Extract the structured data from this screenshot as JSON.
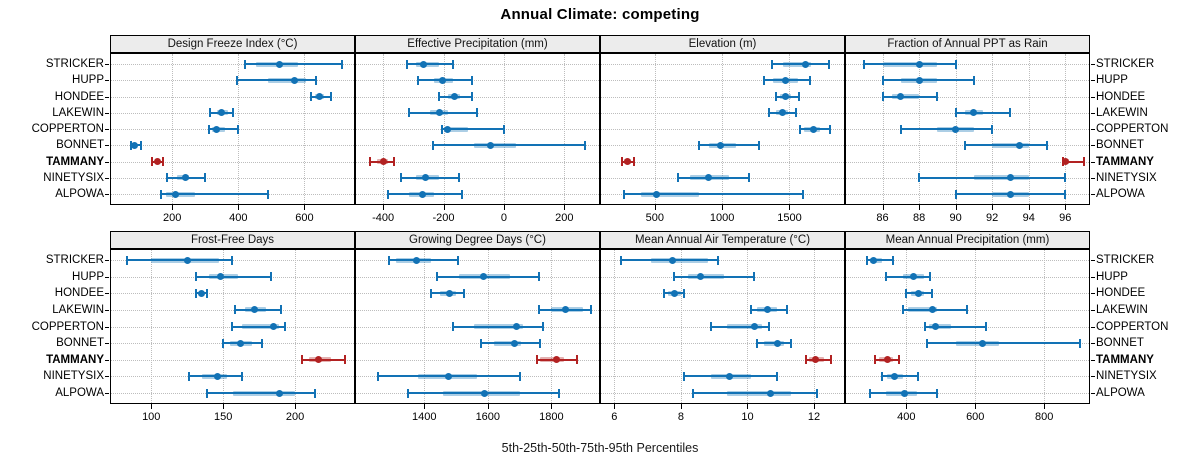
{
  "title": "Annual Climate: competing",
  "caption": "5th-25th-50th-75th-95th Percentiles",
  "stations": [
    "STRICKER",
    "HUPP",
    "HONDEE",
    "LAKEWIN",
    "COPPERTON",
    "BONNET",
    "TAMMANY",
    "NINETYSIX",
    "ALPOWA"
  ],
  "highlight_station": "TAMMANY",
  "colors": {
    "series": "#1272b5",
    "series_band": "rgba(18,114,181,0.35)",
    "highlight": "#b22222",
    "highlight_band": "rgba(178,34,34,0.35)",
    "strip_bg": "#ececec",
    "grid": "#bdbdbd",
    "panel_border": "#000000"
  },
  "chart_data": [
    {
      "type": "dotplot-interval",
      "title": "Design Freeze Index (°C)",
      "percentiles": [
        "5th",
        "25th",
        "50th",
        "75th",
        "95th"
      ],
      "xlim": [
        15,
        750
      ],
      "ticks": [
        200,
        400,
        600
      ],
      "values": [
        [
          420,
          455,
          525,
          580,
          715
        ],
        [
          395,
          490,
          570,
          605,
          635
        ],
        [
          620,
          632,
          645,
          660,
          680
        ],
        [
          315,
          335,
          350,
          370,
          385
        ],
        [
          310,
          322,
          335,
          360,
          400
        ],
        [
          75,
          80,
          86,
          95,
          105
        ],
        [
          140,
          148,
          156,
          163,
          172
        ],
        [
          185,
          215,
          240,
          252,
          300
        ],
        [
          165,
          182,
          210,
          270,
          490
        ]
      ]
    },
    {
      "type": "dotplot-interval",
      "title": "Effective Precipitation (mm)",
      "percentiles": [
        "5th",
        "25th",
        "50th",
        "75th",
        "95th"
      ],
      "xlim": [
        -490,
        315
      ],
      "ticks": [
        -400,
        -200,
        0,
        200
      ],
      "values": [
        [
          -320,
          -290,
          -265,
          -215,
          -170
        ],
        [
          -285,
          -230,
          -205,
          -170,
          -105
        ],
        [
          -215,
          -185,
          -165,
          -145,
          -105
        ],
        [
          -315,
          -245,
          -215,
          -185,
          -90
        ],
        [
          -205,
          -198,
          -188,
          -120,
          0
        ],
        [
          -235,
          -100,
          -45,
          40,
          270
        ],
        [
          -445,
          -420,
          -400,
          -385,
          -365
        ],
        [
          -340,
          -290,
          -260,
          -215,
          -150
        ],
        [
          -385,
          -315,
          -270,
          -230,
          -140
        ]
      ]
    },
    {
      "type": "dotplot-interval",
      "title": "Elevation (m)",
      "percentiles": [
        "5th",
        "25th",
        "50th",
        "75th",
        "95th"
      ],
      "xlim": [
        100,
        1905
      ],
      "ticks": [
        500,
        1000,
        1500
      ],
      "values": [
        [
          1370,
          1450,
          1620,
          1660,
          1790
        ],
        [
          1310,
          1380,
          1470,
          1560,
          1650
        ],
        [
          1400,
          1430,
          1470,
          1510,
          1570
        ],
        [
          1350,
          1400,
          1445,
          1490,
          1545
        ],
        [
          1580,
          1610,
          1680,
          1730,
          1800
        ],
        [
          830,
          900,
          990,
          1100,
          1270
        ],
        [
          255,
          272,
          300,
          322,
          345
        ],
        [
          670,
          760,
          900,
          1050,
          1200
        ],
        [
          270,
          400,
          510,
          830,
          1600
        ]
      ]
    },
    {
      "type": "dotplot-interval",
      "title": "Fraction of Annual PPT as Rain",
      "percentiles": [
        "5th",
        "25th",
        "50th",
        "75th",
        "95th"
      ],
      "xlim": [
        84,
        97.3
      ],
      "ticks": [
        86,
        88,
        90,
        92,
        94,
        96
      ],
      "values": [
        [
          85,
          86,
          88,
          89,
          90
        ],
        [
          86,
          87,
          88,
          89,
          91
        ],
        [
          86,
          86.5,
          87,
          88,
          89
        ],
        [
          90,
          90.5,
          91,
          91.5,
          93
        ],
        [
          87,
          89,
          90,
          91,
          92
        ],
        [
          90.5,
          92,
          93.5,
          94,
          95
        ],
        [
          95.85,
          95.9,
          96,
          96.2,
          97
        ],
        [
          88,
          91,
          93,
          94,
          96
        ],
        [
          90,
          92,
          93,
          94,
          96
        ]
      ]
    },
    {
      "type": "dotplot-interval",
      "title": "Frost-Free Days",
      "percentiles": [
        "5th",
        "25th",
        "50th",
        "75th",
        "95th"
      ],
      "xlim": [
        72,
        241
      ],
      "ticks": [
        100,
        150,
        200
      ],
      "values": [
        [
          83,
          100,
          125,
          147,
          156
        ],
        [
          131,
          140,
          148,
          160,
          183
        ],
        [
          131,
          133,
          135,
          137,
          139
        ],
        [
          158,
          165,
          172,
          180,
          190
        ],
        [
          156,
          163,
          185,
          189,
          193
        ],
        [
          150,
          155,
          162,
          170,
          177
        ],
        [
          205,
          210,
          216,
          225,
          235
        ],
        [
          126,
          135,
          146,
          153,
          163
        ],
        [
          139,
          157,
          189,
          200,
          214
        ]
      ]
    },
    {
      "type": "dotplot-interval",
      "title": "Growing Degree Days (°C)",
      "percentiles": [
        "5th",
        "25th",
        "50th",
        "75th",
        "95th"
      ],
      "xlim": [
        1185,
        1950
      ],
      "ticks": [
        1400,
        1600,
        1800
      ],
      "values": [
        [
          1290,
          1310,
          1375,
          1420,
          1505
        ],
        [
          1440,
          1510,
          1585,
          1670,
          1760
        ],
        [
          1420,
          1450,
          1480,
          1500,
          1525
        ],
        [
          1760,
          1800,
          1845,
          1900,
          1925
        ],
        [
          1490,
          1555,
          1690,
          1710,
          1775
        ],
        [
          1580,
          1620,
          1685,
          1705,
          1765
        ],
        [
          1755,
          1765,
          1815,
          1840,
          1880
        ],
        [
          1255,
          1380,
          1475,
          1565,
          1700
        ],
        [
          1350,
          1460,
          1590,
          1700,
          1825
        ]
      ]
    },
    {
      "type": "dotplot-interval",
      "title": "Mean Annual Air Temperature (°C)",
      "percentiles": [
        "5th",
        "25th",
        "50th",
        "75th",
        "95th"
      ],
      "xlim": [
        5.6,
        12.9
      ],
      "ticks": [
        6,
        8,
        10,
        12
      ],
      "values": [
        [
          6.2,
          7.1,
          7.75,
          8.8,
          9.1
        ],
        [
          7.8,
          8.2,
          8.6,
          9.3,
          10.2
        ],
        [
          7.5,
          7.6,
          7.8,
          8.0,
          8.1
        ],
        [
          10.1,
          10.3,
          10.6,
          10.9,
          11.2
        ],
        [
          8.9,
          9.4,
          10.2,
          10.45,
          10.65
        ],
        [
          10.3,
          10.5,
          10.9,
          11.1,
          11.3
        ],
        [
          11.75,
          11.85,
          12.05,
          12.3,
          12.5
        ],
        [
          8.1,
          8.9,
          9.45,
          10.1,
          10.9
        ],
        [
          8.35,
          9.4,
          10.7,
          11.3,
          12.1
        ]
      ]
    },
    {
      "type": "dotplot-interval",
      "title": "Mean Annual Precipitation (mm)",
      "percentiles": [
        "5th",
        "25th",
        "50th",
        "75th",
        "95th"
      ],
      "xlim": [
        225,
        930
      ],
      "ticks": [
        400,
        600,
        800
      ],
      "values": [
        [
          285,
          295,
          305,
          330,
          360
        ],
        [
          340,
          390,
          420,
          450,
          470
        ],
        [
          400,
          415,
          435,
          450,
          475
        ],
        [
          390,
          405,
          475,
          490,
          575
        ],
        [
          455,
          465,
          485,
          530,
          630
        ],
        [
          460,
          545,
          620,
          670,
          905
        ],
        [
          310,
          320,
          345,
          360,
          380
        ],
        [
          330,
          345,
          365,
          390,
          435
        ],
        [
          295,
          340,
          395,
          430,
          490
        ]
      ]
    }
  ]
}
